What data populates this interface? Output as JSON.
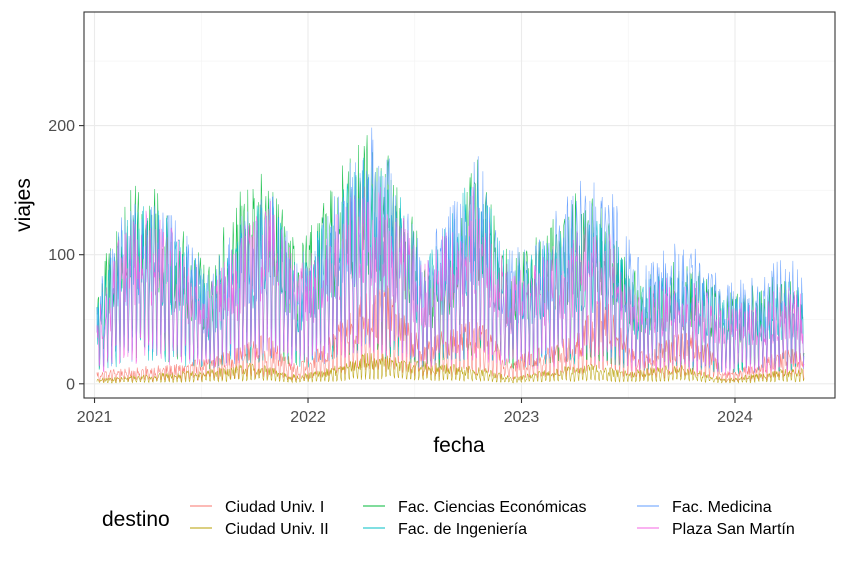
{
  "chart_data": {
    "type": "line",
    "xlabel": "fecha",
    "ylabel": "viajes",
    "xlim": [
      "2020-12-14",
      "2024-06-20"
    ],
    "ylim": [
      -11,
      288
    ],
    "x_ticks": [
      {
        "value": "2021-01-01",
        "label": "2021"
      },
      {
        "value": "2022-01-01",
        "label": "2022"
      },
      {
        "value": "2023-01-01",
        "label": "2023"
      },
      {
        "value": "2024-01-01",
        "label": "2024"
      }
    ],
    "y_ticks": [
      {
        "value": 0,
        "label": "0"
      },
      {
        "value": 100,
        "label": "100"
      },
      {
        "value": 200,
        "label": "200"
      }
    ],
    "grid": true,
    "legend": {
      "title": "destino",
      "position": "bottom"
    },
    "series": [
      {
        "name": "Ciudad Univ. I",
        "color": "#F8766D",
        "points": [
          [
            "2021-01-05",
            8
          ],
          [
            "2021-03-01",
            10
          ],
          [
            "2021-06-01",
            12
          ],
          [
            "2021-09-01",
            22
          ],
          [
            "2021-10-20",
            30
          ],
          [
            "2021-12-15",
            12
          ],
          [
            "2022-02-01",
            25
          ],
          [
            "2022-04-01",
            55
          ],
          [
            "2022-05-15",
            60
          ],
          [
            "2022-07-15",
            25
          ],
          [
            "2022-09-01",
            35
          ],
          [
            "2022-10-15",
            40
          ],
          [
            "2022-12-15",
            15
          ],
          [
            "2023-02-01",
            22
          ],
          [
            "2023-04-01",
            30
          ],
          [
            "2023-05-20",
            55
          ],
          [
            "2023-07-20",
            18
          ],
          [
            "2023-09-01",
            28
          ],
          [
            "2023-11-01",
            32
          ],
          [
            "2023-12-15",
            8
          ],
          [
            "2024-02-01",
            12
          ],
          [
            "2024-04-01",
            25
          ],
          [
            "2024-04-28",
            20
          ]
        ]
      },
      {
        "name": "Ciudad Univ. II",
        "color": "#B79F00",
        "points": [
          [
            "2021-01-05",
            3
          ],
          [
            "2021-04-01",
            6
          ],
          [
            "2021-07-01",
            8
          ],
          [
            "2021-10-01",
            13
          ],
          [
            "2021-12-15",
            5
          ],
          [
            "2022-03-01",
            12
          ],
          [
            "2022-04-15",
            20
          ],
          [
            "2022-06-15",
            15
          ],
          [
            "2022-09-01",
            12
          ],
          [
            "2022-11-01",
            10
          ],
          [
            "2022-12-15",
            4
          ],
          [
            "2023-03-01",
            10
          ],
          [
            "2023-05-01",
            12
          ],
          [
            "2023-07-01",
            8
          ],
          [
            "2023-10-01",
            12
          ],
          [
            "2023-12-15",
            3
          ],
          [
            "2024-03-01",
            8
          ],
          [
            "2024-04-28",
            10
          ]
        ]
      },
      {
        "name": "Fac. Ciencias Económicas",
        "color": "#00BA38",
        "points": [
          [
            "2021-01-05",
            60
          ],
          [
            "2021-02-15",
            110
          ],
          [
            "2021-04-01",
            125
          ],
          [
            "2021-05-15",
            100
          ],
          [
            "2021-07-15",
            70
          ],
          [
            "2021-09-01",
            115
          ],
          [
            "2021-10-20",
            130
          ],
          [
            "2021-12-15",
            80
          ],
          [
            "2022-02-15",
            120
          ],
          [
            "2022-04-01",
            155
          ],
          [
            "2022-05-15",
            140
          ],
          [
            "2022-07-15",
            85
          ],
          [
            "2022-08-20",
            60
          ],
          [
            "2022-09-15",
            115
          ],
          [
            "2022-10-20",
            135
          ],
          [
            "2022-12-15",
            75
          ],
          [
            "2023-02-15",
            95
          ],
          [
            "2023-04-01",
            115
          ],
          [
            "2023-05-15",
            110
          ],
          [
            "2023-07-15",
            70
          ],
          [
            "2023-09-15",
            75
          ],
          [
            "2023-11-01",
            70
          ],
          [
            "2023-12-15",
            55
          ],
          [
            "2024-02-15",
            60
          ],
          [
            "2024-04-01",
            70
          ],
          [
            "2024-04-28",
            65
          ]
        ]
      },
      {
        "name": "Fac. de Ingeniería",
        "color": "#00BFC4",
        "points": [
          [
            "2021-01-05",
            50
          ],
          [
            "2021-02-15",
            95
          ],
          [
            "2021-04-01",
            110
          ],
          [
            "2021-06-01",
            90
          ],
          [
            "2021-07-15",
            60
          ],
          [
            "2021-09-15",
            100
          ],
          [
            "2021-11-01",
            115
          ],
          [
            "2021-12-15",
            70
          ],
          [
            "2022-02-15",
            110
          ],
          [
            "2022-04-15",
            140
          ],
          [
            "2022-06-01",
            120
          ],
          [
            "2022-07-15",
            70
          ],
          [
            "2022-09-15",
            110
          ],
          [
            "2022-10-15",
            130
          ],
          [
            "2022-12-15",
            70
          ],
          [
            "2023-02-15",
            85
          ],
          [
            "2023-04-15",
            100
          ],
          [
            "2023-06-01",
            95
          ],
          [
            "2023-07-15",
            60
          ],
          [
            "2023-09-15",
            68
          ],
          [
            "2023-11-01",
            65
          ],
          [
            "2023-12-15",
            50
          ],
          [
            "2024-02-15",
            55
          ],
          [
            "2024-04-01",
            62
          ],
          [
            "2024-04-28",
            58
          ]
        ]
      },
      {
        "name": "Fac. Medicina",
        "color": "#619CFF",
        "points": [
          [
            "2021-01-05",
            55
          ],
          [
            "2021-02-15",
            100
          ],
          [
            "2021-04-01",
            115
          ],
          [
            "2021-06-01",
            95
          ],
          [
            "2021-07-15",
            65
          ],
          [
            "2021-09-15",
            105
          ],
          [
            "2021-11-01",
            120
          ],
          [
            "2021-12-15",
            75
          ],
          [
            "2022-02-15",
            115
          ],
          [
            "2022-04-20",
            160
          ],
          [
            "2022-06-01",
            130
          ],
          [
            "2022-07-15",
            80
          ],
          [
            "2022-09-15",
            115
          ],
          [
            "2022-10-20",
            140
          ],
          [
            "2022-12-15",
            80
          ],
          [
            "2023-02-15",
            100
          ],
          [
            "2023-04-15",
            125
          ],
          [
            "2023-06-01",
            120
          ],
          [
            "2023-07-15",
            75
          ],
          [
            "2023-09-15",
            85
          ],
          [
            "2023-11-01",
            80
          ],
          [
            "2023-12-15",
            60
          ],
          [
            "2024-02-15",
            65
          ],
          [
            "2024-04-01",
            80
          ],
          [
            "2024-04-28",
            70
          ]
        ]
      },
      {
        "name": "Plaza San Martín",
        "color": "#F564E3",
        "points": [
          [
            "2021-01-05",
            45
          ],
          [
            "2021-02-15",
            90
          ],
          [
            "2021-04-01",
            105
          ],
          [
            "2021-05-25",
            90
          ],
          [
            "2021-07-15",
            60
          ],
          [
            "2021-09-15",
            95
          ],
          [
            "2021-11-01",
            110
          ],
          [
            "2021-12-15",
            70
          ],
          [
            "2022-02-15",
            100
          ],
          [
            "2022-04-15",
            125
          ],
          [
            "2022-06-01",
            110
          ],
          [
            "2022-07-15",
            70
          ],
          [
            "2022-09-15",
            105
          ],
          [
            "2022-10-15",
            120
          ],
          [
            "2022-12-15",
            65
          ],
          [
            "2023-02-15",
            80
          ],
          [
            "2023-04-15",
            95
          ],
          [
            "2023-06-01",
            90
          ],
          [
            "2023-07-15",
            55
          ],
          [
            "2023-09-15",
            65
          ],
          [
            "2023-11-01",
            60
          ],
          [
            "2023-12-15",
            45
          ],
          [
            "2024-02-15",
            52
          ],
          [
            "2024-04-01",
            60
          ],
          [
            "2024-04-28",
            55
          ]
        ]
      }
    ]
  }
}
